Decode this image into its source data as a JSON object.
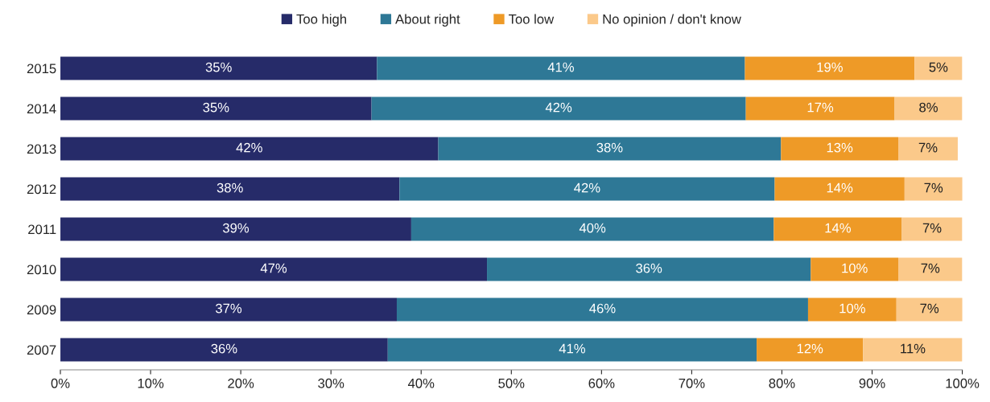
{
  "chart_data": {
    "type": "bar",
    "orientation": "horizontal",
    "stacked": true,
    "legend": "top",
    "grid": false,
    "categories": [
      "2015",
      "2014",
      "2013",
      "2012",
      "2011",
      "2010",
      "2009",
      "2007"
    ],
    "xlim": [
      0,
      100
    ],
    "xticks": [
      {
        "value": 0,
        "label": "0%"
      },
      {
        "value": 10,
        "label": "10%"
      },
      {
        "value": 20,
        "label": "20%"
      },
      {
        "value": 30,
        "label": "30%"
      },
      {
        "value": 40,
        "label": "40%"
      },
      {
        "value": 50,
        "label": "50%"
      },
      {
        "value": 60,
        "label": "60%"
      },
      {
        "value": 70,
        "label": "70%"
      },
      {
        "value": 80,
        "label": "80%"
      },
      {
        "value": 90,
        "label": "90%"
      },
      {
        "value": 100,
        "label": "100%"
      }
    ],
    "series": [
      {
        "name": "Too high",
        "color": "#262b69",
        "values": [
          35.1,
          34.5,
          41.9,
          37.6,
          38.9,
          47.3,
          37.3,
          36.3
        ],
        "value_labels": [
          "35%",
          "35%",
          "42%",
          "38%",
          "39%",
          "47%",
          "37%",
          "36%"
        ]
      },
      {
        "name": "About right",
        "color": "#2e7896",
        "values": [
          40.8,
          41.5,
          38.0,
          41.6,
          40.2,
          35.9,
          45.6,
          40.9
        ],
        "value_labels": [
          "41%",
          "42%",
          "38%",
          "42%",
          "40%",
          "36%",
          "46%",
          "41%"
        ]
      },
      {
        "name": "Too low",
        "color": "#ee9a27",
        "values": [
          18.8,
          16.5,
          13.0,
          14.4,
          14.2,
          9.7,
          9.8,
          11.8
        ],
        "value_labels": [
          "19%",
          "17%",
          "13%",
          "14%",
          "14%",
          "10%",
          "10%",
          "12%"
        ]
      },
      {
        "name": "No opinion / don't know",
        "color": "#fbc98a",
        "values": [
          5.3,
          7.5,
          6.6,
          6.5,
          6.7,
          7.1,
          7.4,
          11.0
        ],
        "value_labels": [
          "5%",
          "8%",
          "7%",
          "7%",
          "7%",
          "7%",
          "7%",
          "11%"
        ]
      }
    ]
  }
}
